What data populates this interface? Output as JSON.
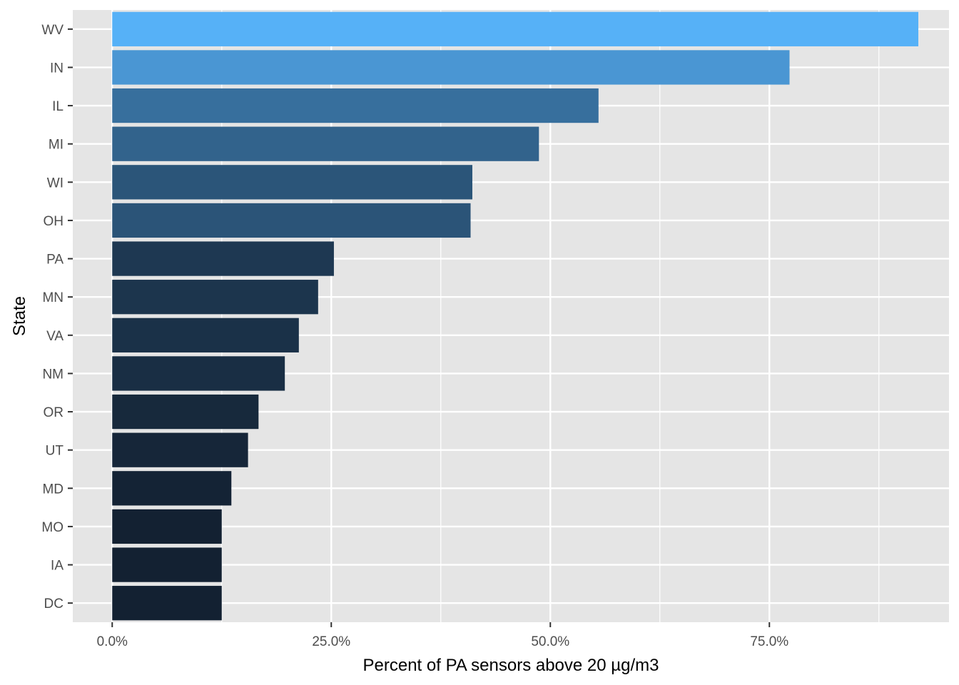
{
  "chart_data": {
    "type": "bar",
    "orientation": "horizontal",
    "title": "",
    "xlabel": "Percent of PA sensors above 20 µg/m3",
    "ylabel": "State",
    "categories": [
      "WV",
      "IN",
      "IL",
      "MI",
      "WI",
      "OH",
      "PA",
      "MN",
      "VA",
      "NM",
      "OR",
      "UT",
      "MD",
      "MO",
      "IA",
      "DC"
    ],
    "values": [
      0.92,
      0.773,
      0.555,
      0.487,
      0.411,
      0.409,
      0.253,
      0.235,
      0.213,
      0.197,
      0.167,
      0.155,
      0.136,
      0.125,
      0.125,
      0.125
    ],
    "xlim": [
      -0.045,
      0.955
    ],
    "x_ticks": [
      0,
      0.25,
      0.5,
      0.75
    ],
    "x_tick_labels": [
      "0.0%",
      "25.0%",
      "50.0%",
      "75.0%"
    ],
    "grid": true,
    "legend": "none",
    "colors": {
      "panel_background": "#e5e5e5",
      "grid_line": "#ffffff",
      "tick_text": "#4d4d4d",
      "tick_mark": "#333333",
      "bar_low": "#132132",
      "bar_high": "#56b1f7"
    }
  }
}
